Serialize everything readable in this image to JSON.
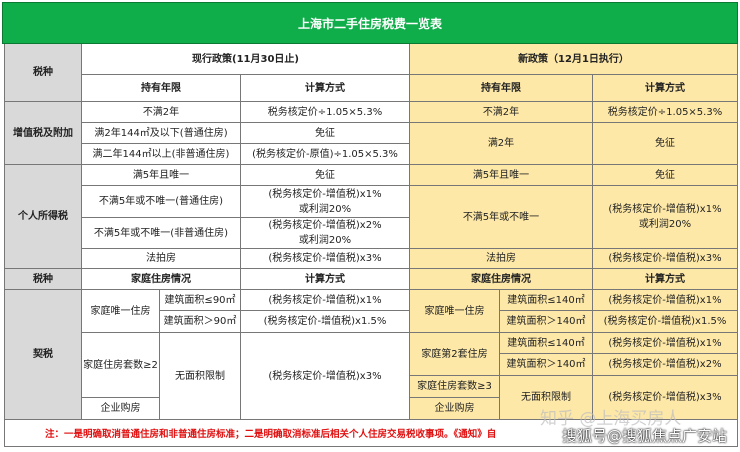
{
  "title": "上海市二手住房税费一览表",
  "headers": {
    "tax_type": "税种",
    "old_policy": "现行政策(11月30日止)",
    "new_policy": "新政策（12月1日执行）",
    "holding": "持有年限",
    "calc": "计算方式",
    "family_housing": "家庭住房情况"
  },
  "vat": {
    "label": "增值税及附加",
    "old": [
      {
        "holding": "不满2年",
        "calc": "税务核定价÷1.05×5.3%"
      },
      {
        "holding": "满2年144㎡及以下(普通住房)",
        "calc": "免征"
      },
      {
        "holding": "满二年144㎡以上(非普通住房)",
        "calc": "(税务核定价-原值)÷1.05×5.3%"
      }
    ],
    "new": [
      {
        "holding": "不满2年",
        "calc": "税务核定价÷1.05×5.3%"
      },
      {
        "holding": "满2年",
        "calc": "免征"
      }
    ]
  },
  "iit": {
    "label": "个人所得税",
    "old": [
      {
        "holding": "满5年且唯一",
        "calc": "免征"
      },
      {
        "holding": "不满5年或不唯一(普通住房)",
        "calc": "(税务核定价-增值税)x1%\n或利润20%"
      },
      {
        "holding": "不满5年或不唯一(非普通住房)",
        "calc": "(税务核定价-增值税)x2%\n或利润20%"
      },
      {
        "holding": "法拍房",
        "calc": "(税务核定价-增值税)x3%"
      }
    ],
    "new": [
      {
        "holding": "满5年且唯一",
        "calc": "免征"
      },
      {
        "holding": "不满5年或不唯一",
        "calc": "(税务核定价-增值税)x1%\n或利润20%"
      },
      {
        "holding": "法拍房",
        "calc": "(税务核定价-增值税)x3%"
      }
    ]
  },
  "deed": {
    "label": "契税",
    "old": {
      "only_home": "家庭唯一住房",
      "area_le": "建筑面积≤90㎡",
      "area_gt": "建筑面积＞90㎡",
      "calc_le": "(税务核定价-增值税)x1%",
      "calc_gt": "(税务核定价-增值税)x1.5%",
      "multi": "家庭住房套数≥2",
      "company": "企业购房",
      "no_limit": "无面积限制",
      "calc_multi": "(税务核定价-增值税)x3%"
    },
    "new": {
      "only_home": "家庭唯一住房",
      "area_le": "建筑面积≤140㎡",
      "area_gt": "建筑面积＞140㎡",
      "calc_le": "(税务核定价-增值税)x1%",
      "calc_gt": "(税务核定价-增值税)x1.5%",
      "second": "家庭第2套住房",
      "area2_le": "建筑面积≤140㎡",
      "area2_gt": "建筑面积＞140㎡",
      "calc2_le": "(税务核定价-增值税)x1%",
      "calc2_gt": "(税务核定价-增值税)x2%",
      "multi": "家庭住房套数≥3",
      "company": "企业购房",
      "no_limit": "无面积限制",
      "calc_multi": "(税务核定价-增值税)x3%"
    }
  },
  "note": "注：一是明确取消普通住房和非普通住房标准；二是明确取消标准后相关个人住房交易税收事项。《通知》自",
  "watermarks": [
    "知乎 @上海买房人",
    "搜狐号@搜狐焦点广安站"
  ],
  "colors": {
    "title_bg": "#10ae4a",
    "new_policy_bg": "#fde8a8",
    "label_bg": "#d9d9d9",
    "note": "#e01010"
  }
}
